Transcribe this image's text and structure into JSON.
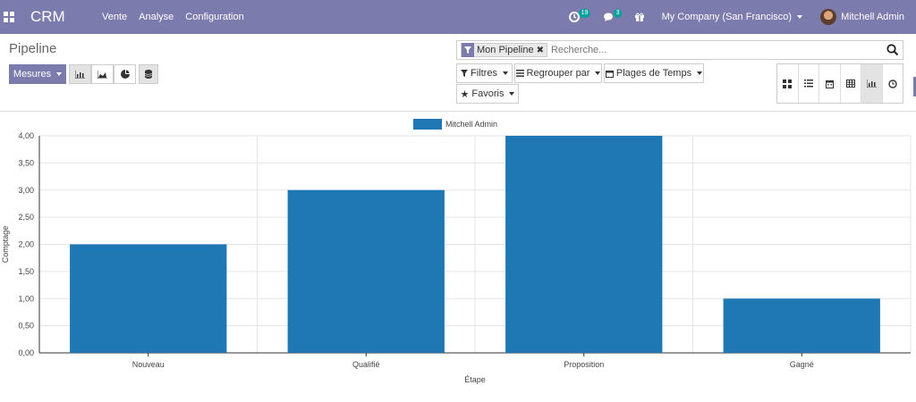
{
  "navbar": {
    "brand": "CRM",
    "menu": [
      "Vente",
      "Analyse",
      "Configuration"
    ],
    "activities_badge": "19",
    "messages_badge": "3",
    "company": "My Company (San Francisco)",
    "user": "Mitchell Admin"
  },
  "control_panel": {
    "breadcrumb": "Pipeline",
    "search": {
      "facet": "Mon Pipeline",
      "placeholder": "Recherche..."
    },
    "measures_label": "Mesures",
    "filters_label": "Filtres",
    "groupby_label": "Regrouper par",
    "timeranges_label": "Plages de Temps",
    "favorites_label": "Favoris",
    "views": [
      "kanban",
      "list",
      "calendar",
      "pivot",
      "graph",
      "activity"
    ],
    "active_view": "graph"
  },
  "colors": {
    "brand": "#7c7bad",
    "bar": "#1f77b4",
    "badge": "#00a09d"
  },
  "chart_data": {
    "type": "bar",
    "categories": [
      "Nouveau",
      "Qualifié",
      "Proposition",
      "Gagné"
    ],
    "series": [
      {
        "name": "Mitchell Admin",
        "values": [
          2,
          3,
          4,
          1
        ]
      }
    ],
    "xlabel": "Étape",
    "ylabel": "Comptage",
    "ylim": [
      0,
      4
    ],
    "yticks": [
      "0,00",
      "0,50",
      "1,00",
      "1,50",
      "2,00",
      "2,50",
      "3,00",
      "3,50",
      "4,00"
    ],
    "grid": true,
    "legend": "top-center"
  }
}
